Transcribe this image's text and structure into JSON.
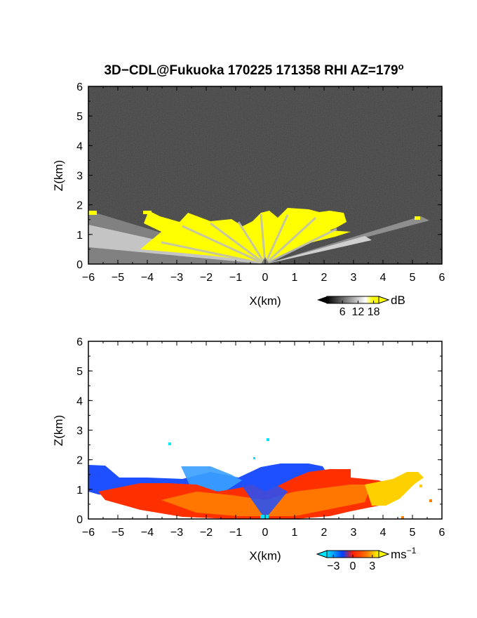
{
  "chart_data": [
    {
      "type": "heatmap",
      "name": "reflectivity",
      "title": "3D−CDL@Fukuoka 170225 171358 RHI AZ=179",
      "title_superscript": "o",
      "xlabel": "X(km)",
      "ylabel": "Z(km)",
      "xlim": [
        -6,
        6
      ],
      "ylim": [
        0,
        6
      ],
      "xticks": [
        "−6",
        "−5",
        "−4",
        "−3",
        "−2",
        "−1",
        "0",
        "1",
        "2",
        "3",
        "4",
        "5",
        "6"
      ],
      "yticks": [
        "0",
        "1",
        "2",
        "3",
        "4",
        "5",
        "6"
      ],
      "grid": false,
      "background_color": "#1c1c1c",
      "colorbar": {
        "unit": "dB",
        "ticks": [
          "6",
          "12",
          "18"
        ],
        "tick_values": [
          6,
          12,
          18
        ],
        "range": [
          0,
          20
        ],
        "colors": [
          "#000000",
          "#ffffff",
          "#ffff00"
        ]
      }
    },
    {
      "type": "heatmap",
      "name": "doppler-velocity",
      "xlabel": "X(km)",
      "ylabel": "Z(km)",
      "xlim": [
        -6,
        6
      ],
      "ylim": [
        0,
        6
      ],
      "xticks": [
        "−6",
        "−5",
        "−4",
        "−3",
        "−2",
        "−1",
        "0",
        "1",
        "2",
        "3",
        "4",
        "5",
        "6"
      ],
      "yticks": [
        "0",
        "1",
        "2",
        "3",
        "4",
        "5",
        "6"
      ],
      "grid": false,
      "background_color": "#ffffff",
      "colorbar": {
        "unit": "ms",
        "unit_superscript": "−1",
        "ticks": [
          "−3",
          "0",
          "3"
        ],
        "tick_values": [
          -3,
          0,
          3
        ],
        "range": [
          -4,
          4
        ],
        "colors": [
          "#00e5ff",
          "#0040ff",
          "#ff2000",
          "#ff7000",
          "#ffff00"
        ]
      }
    }
  ]
}
